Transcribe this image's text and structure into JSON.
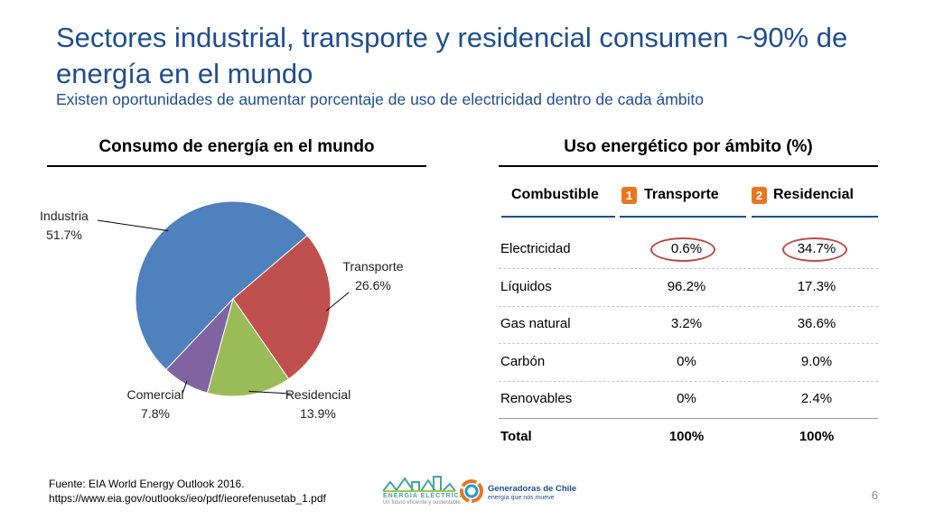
{
  "header": {
    "title": "Sectores industrial, transporte y residencial consumen ~90% de energía en el mundo",
    "subtitle": "Existen oportunidades de aumentar porcentaje de uso de electricidad dentro de cada ámbito"
  },
  "left_panel": {
    "title": "Consumo de energía en el mundo"
  },
  "right_panel": {
    "title": "Uso energético por ámbito (%)",
    "columns": {
      "fuel": "Combustible",
      "transport": "Transporte",
      "residential": "Residencial"
    },
    "badges": {
      "transport": "1",
      "residential": "2"
    },
    "rows": [
      {
        "fuel": "Electricidad",
        "transport": "0.6%",
        "residential": "34.7%"
      },
      {
        "fuel": "Líquidos",
        "transport": "96.2%",
        "residential": "17.3%"
      },
      {
        "fuel": "Gas natural",
        "transport": "3.2%",
        "residential": "36.6%"
      },
      {
        "fuel": "Carbón",
        "transport": "0%",
        "residential": "9.0%"
      },
      {
        "fuel": "Renovables",
        "transport": "0%",
        "residential": "2.4%"
      },
      {
        "fuel": "Total",
        "transport": "100%",
        "residential": "100%"
      }
    ],
    "highlight_color": "#b94a48"
  },
  "chart_data": [
    {
      "type": "pie",
      "title": "Consumo de energía en el mundo",
      "slices": [
        {
          "label": "Industria",
          "value": 51.7,
          "display": "51.7%",
          "color": "#4f81bd"
        },
        {
          "label": "Transporte",
          "value": 26.6,
          "display": "26.6%",
          "color": "#c0504d"
        },
        {
          "label": "Residencial",
          "value": 13.9,
          "display": "13.9%",
          "color": "#9bbb59"
        },
        {
          "label": "Comercial",
          "value": 7.8,
          "display": "7.8%",
          "color": "#8064a2"
        }
      ]
    },
    {
      "type": "table",
      "title": "Uso energético por ámbito (%)",
      "columns": [
        "Combustible",
        "Transporte",
        "Residencial"
      ],
      "rows": [
        [
          "Electricidad",
          "0.6%",
          "34.7%"
        ],
        [
          "Líquidos",
          "96.2%",
          "17.3%"
        ],
        [
          "Gas natural",
          "3.2%",
          "36.6%"
        ],
        [
          "Carbón",
          "0%",
          "9.0%"
        ],
        [
          "Renovables",
          "0%",
          "2.4%"
        ],
        [
          "Total",
          "100%",
          "100%"
        ]
      ]
    }
  ],
  "footer": {
    "source": "Fuente: EIA World Energy Outlook 2016.",
    "url": "https://www.eia.gov/outlooks/ieo/pdf/ieorefenusetab_1.pdf",
    "page": "6"
  },
  "logos": {
    "energia": {
      "name": "ENERGÍA ELÉCTRICA",
      "tagline": "Un futuro eficiente y sustentable"
    },
    "generadoras": {
      "name": "Generadoras de Chile",
      "tagline": "energía que nos mueve"
    }
  }
}
